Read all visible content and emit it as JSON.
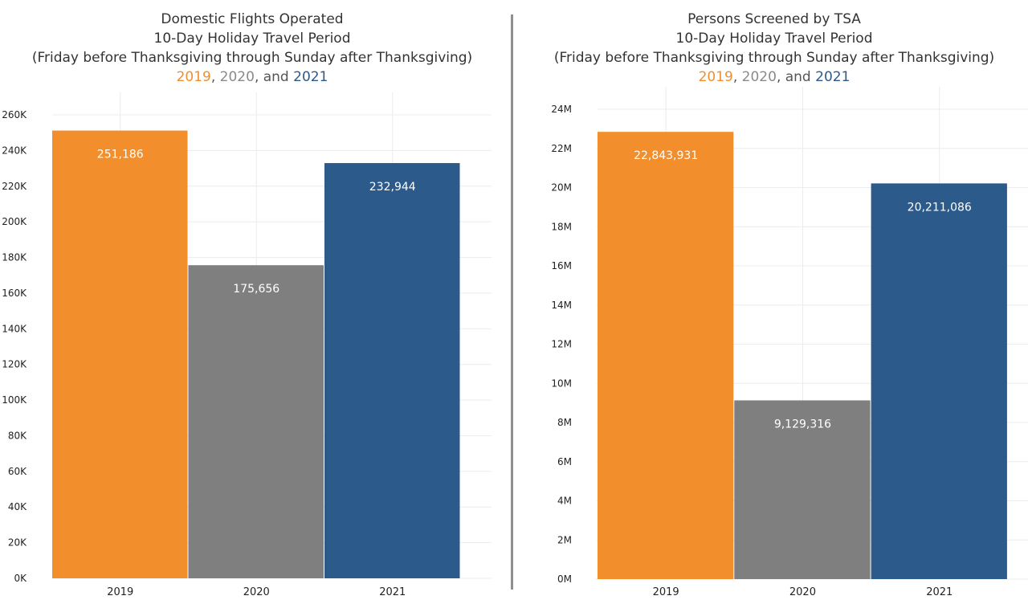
{
  "colors": {
    "2019": "#f28e2b",
    "2020": "#7f7f7f",
    "2021": "#2c5a8a",
    "grid": "#ececec",
    "divider": "#8f8f8f"
  },
  "chart_data": [
    {
      "type": "bar",
      "title": "Domestic Flights Operated",
      "subtitle_lines": [
        "10-Day Holiday Travel Period",
        "(Friday before Thanksgiving through Sunday after Thanksgiving)"
      ],
      "year_line": {
        "y2019": "2019",
        "sep1": ", ",
        "y2020": "2020",
        "sep2": ", and ",
        "y2021": "2021"
      },
      "categories": [
        "2019",
        "2020",
        "2021"
      ],
      "values": [
        251186,
        175656,
        232944
      ],
      "data_labels": [
        "251,186",
        "175,656",
        "232,944"
      ],
      "ylim": [
        0,
        260000
      ],
      "yticks": [
        0,
        20000,
        40000,
        60000,
        80000,
        100000,
        120000,
        140000,
        160000,
        180000,
        200000,
        220000,
        240000,
        260000
      ],
      "ytick_labels": [
        "0K",
        "20K",
        "40K",
        "60K",
        "80K",
        "100K",
        "120K",
        "140K",
        "160K",
        "180K",
        "200K",
        "220K",
        "240K",
        "260K"
      ],
      "xlabel": "",
      "ylabel": "",
      "grid": true
    },
    {
      "type": "bar",
      "title": "Persons Screened by TSA",
      "subtitle_lines": [
        "10-Day Holiday Travel Period",
        "(Friday before Thanksgiving through Sunday after Thanksgiving)"
      ],
      "year_line": {
        "y2019": "2019",
        "sep1": ", ",
        "y2020": "2020",
        "sep2": ", and ",
        "y2021": "2021"
      },
      "categories": [
        "2019",
        "2020",
        "2021"
      ],
      "values": [
        22843931,
        9129316,
        20211086
      ],
      "data_labels": [
        "22,843,931",
        "9,129,316",
        "20,211,086"
      ],
      "ylim": [
        0,
        24000000
      ],
      "yticks": [
        0,
        2000000,
        4000000,
        6000000,
        8000000,
        10000000,
        12000000,
        14000000,
        16000000,
        18000000,
        20000000,
        22000000,
        24000000
      ],
      "ytick_labels": [
        "0M",
        "2M",
        "4M",
        "6M",
        "8M",
        "10M",
        "12M",
        "14M",
        "16M",
        "18M",
        "20M",
        "22M",
        "24M"
      ],
      "xlabel": "",
      "ylabel": "",
      "grid": true
    }
  ]
}
